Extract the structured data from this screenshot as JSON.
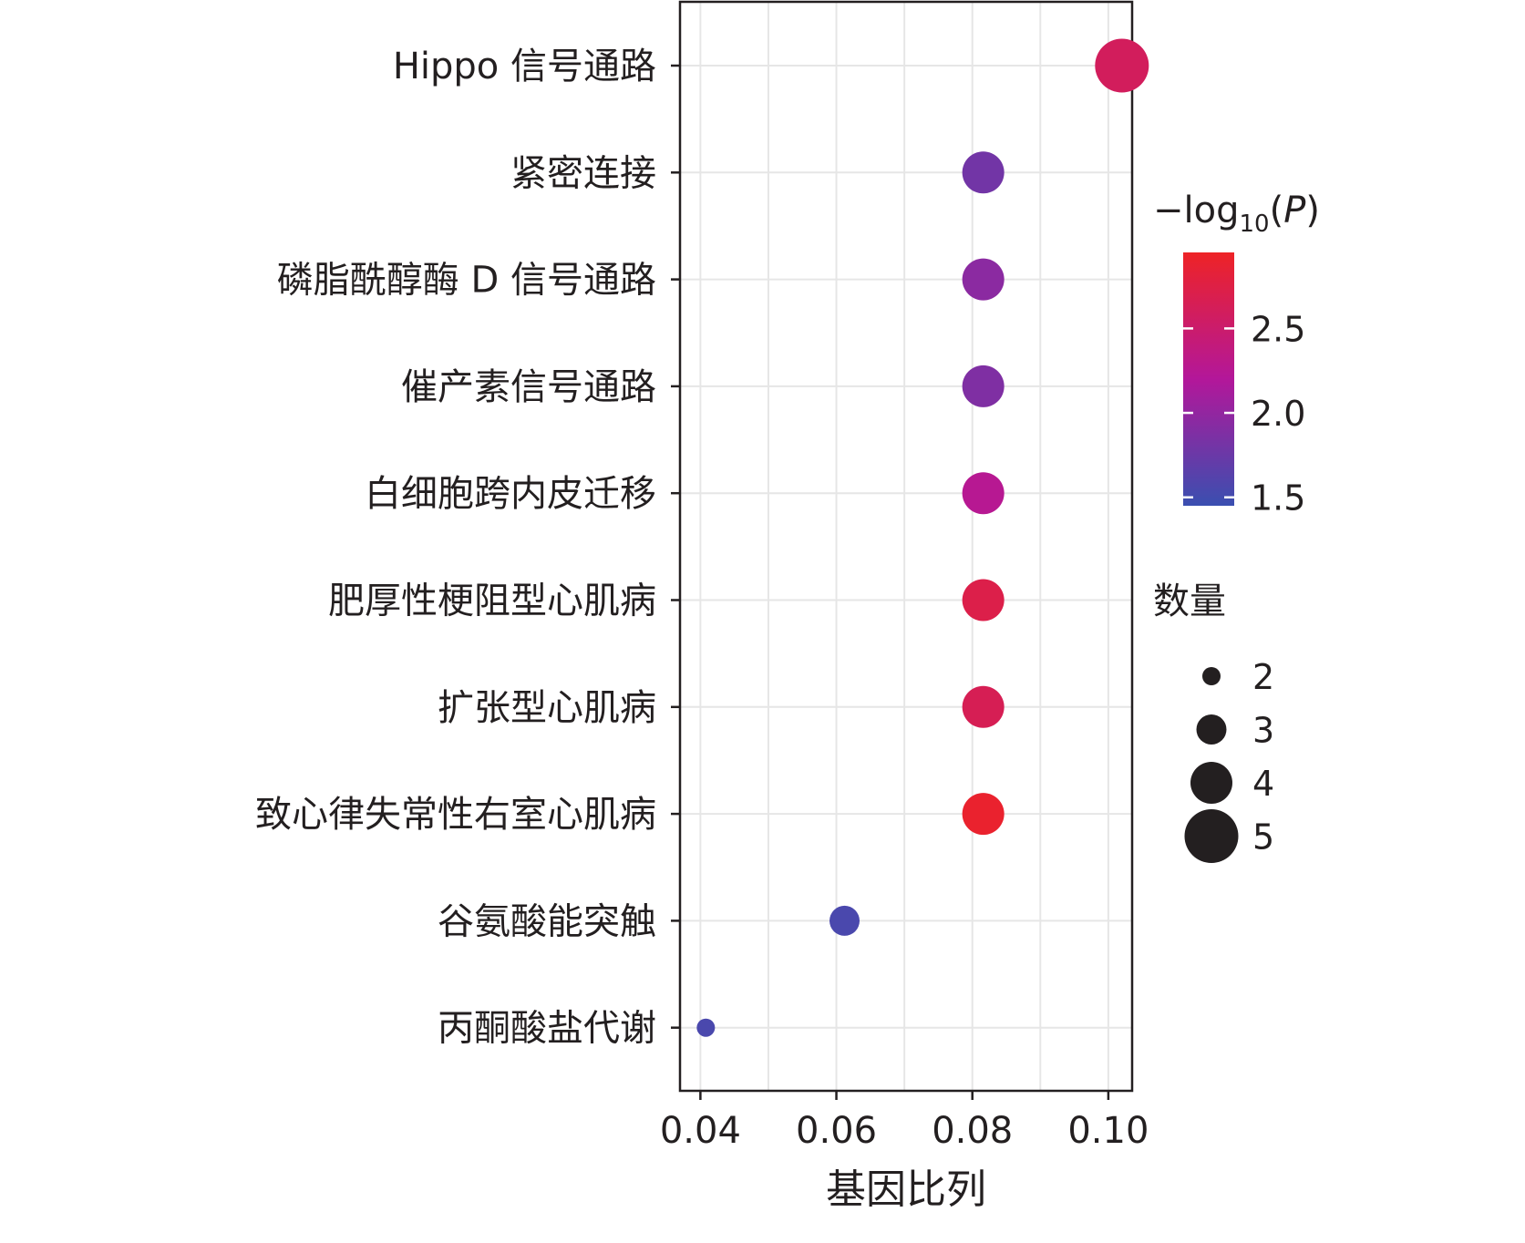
{
  "chart_data": {
    "type": "scatter",
    "xlabel": "基因比列",
    "xlim": [
      0.037,
      0.1035
    ],
    "xticks": [
      "0.04",
      "0.06",
      "0.08",
      "0.10"
    ],
    "xtick_values": [
      0.04,
      0.06,
      0.08,
      0.1
    ],
    "grid": true,
    "categories": [
      "Hippo 信号通路",
      "紧密连接",
      "磷脂酰醇酶 D 信号通路",
      "催产素信号通路",
      "白细胞跨内皮迁移",
      "肥厚性梗阻型心肌病",
      "扩张型心肌病",
      "致心律失常性右室心肌病",
      "谷氨酸能突触",
      "丙酮酸盐代谢"
    ],
    "points": [
      {
        "category": "Hippo 信号通路",
        "x": 0.102,
        "count": 5,
        "neg_log10_p": 2.6
      },
      {
        "category": "紧密连接",
        "x": 0.0816,
        "count": 4,
        "neg_log10_p": 1.8
      },
      {
        "category": "磷脂酰醇酶 D 信号通路",
        "x": 0.0816,
        "count": 4,
        "neg_log10_p": 1.95
      },
      {
        "category": "催产素信号通路",
        "x": 0.0816,
        "count": 4,
        "neg_log10_p": 1.88
      },
      {
        "category": "白细胞跨内皮迁移",
        "x": 0.0816,
        "count": 4,
        "neg_log10_p": 2.25
      },
      {
        "category": "肥厚性梗阻型心肌病",
        "x": 0.0816,
        "count": 4,
        "neg_log10_p": 2.72
      },
      {
        "category": "扩张型心肌病",
        "x": 0.0816,
        "count": 4,
        "neg_log10_p": 2.65
      },
      {
        "category": "致心律失常性右室心肌病",
        "x": 0.0816,
        "count": 4,
        "neg_log10_p": 2.9
      },
      {
        "category": "谷氨酸能突触",
        "x": 0.0612,
        "count": 3,
        "neg_log10_p": 1.55
      },
      {
        "category": "丙酮酸盐代谢",
        "x": 0.0408,
        "count": 2,
        "neg_log10_p": 1.55
      }
    ],
    "color_legend": {
      "title_prefix": "−log",
      "title_sub": "10",
      "title_var": "P",
      "min": 1.45,
      "max": 2.95,
      "ticks": [
        1.5,
        2.0,
        2.5
      ],
      "tick_labels": [
        "1.5",
        "2.0",
        "2.5"
      ],
      "colors": [
        "#3a4fb0",
        "#b3179a",
        "#ee2326"
      ]
    },
    "size_legend": {
      "title": "数量",
      "values": [
        2,
        3,
        4,
        5
      ],
      "labels": [
        "2",
        "3",
        "4",
        "5"
      ]
    },
    "point_color_default": "#231f20"
  }
}
